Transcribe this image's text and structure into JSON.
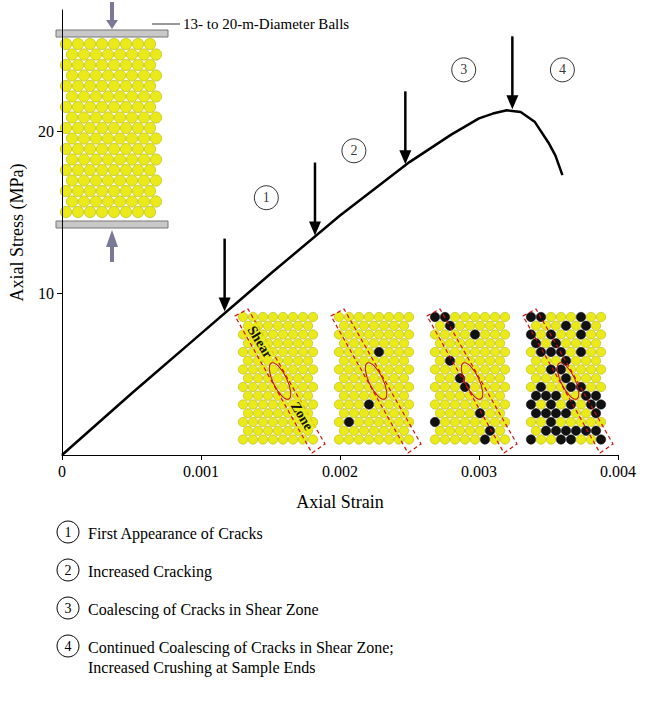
{
  "chart_data": {
    "type": "line",
    "x_label": "Axial Strain",
    "y_label": "Axial Stress (MPa)",
    "x": [
      0,
      0.0005,
      0.001,
      0.0015,
      0.002,
      0.0025,
      0.0028,
      0.003,
      0.0031,
      0.0032,
      0.0033,
      0.0034,
      0.0035,
      0.00355,
      0.0036
    ],
    "values": [
      0,
      3.8,
      7.5,
      11.2,
      14.8,
      18.1,
      19.8,
      20.8,
      21.1,
      21.3,
      21.2,
      20.6,
      19.3,
      18.5,
      17.3
    ],
    "color": "#000000",
    "marker": "none",
    "line_style": "solid",
    "grid": false,
    "xlim": [
      0,
      0.004
    ],
    "xticks": [
      0,
      0.001,
      0.002,
      0.003,
      0.004
    ],
    "ylim": [
      0,
      27.5
    ],
    "yticks": [
      10,
      20
    ],
    "stages": [
      {
        "label": "1",
        "description": "First Appearance of Cracks",
        "x": 0.00147,
        "y": 15.9,
        "arrow": [
          0.00117,
          8.8
        ]
      },
      {
        "label": "2",
        "description": "Increased Cracking",
        "x": 0.0021,
        "y": 18.8,
        "arrow": [
          0.00182,
          13.5
        ]
      },
      {
        "label": "3",
        "description": "Coalescing of Cracks in Shear Zone",
        "x": 0.00289,
        "y": 23.8,
        "arrow": [
          0.00247,
          17.9
        ]
      },
      {
        "label": "4",
        "description": "Continued Coalescing of Cracks in Shear Zone; Increased Crushing at Sample Ends",
        "x": 0.0036,
        "y": 23.8,
        "arrow": [
          0.00324,
          21.3
        ]
      }
    ],
    "inset_texts": {
      "balls": "13- to 20-m-Diameter Balls",
      "shear_zone": [
        "Shear",
        "Zone"
      ]
    }
  }
}
